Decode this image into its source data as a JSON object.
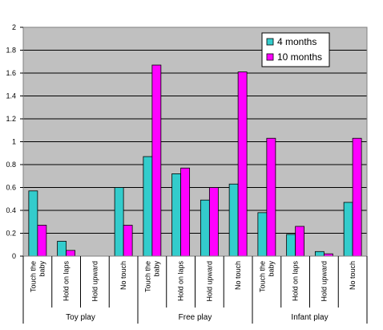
{
  "chart_data": {
    "type": "bar",
    "ylim": [
      0,
      2
    ],
    "y_ticks": [
      "0",
      "0.2",
      "0.4",
      "0.6",
      "0.8",
      "1",
      "1.2",
      "1.4",
      "1.6",
      "1.8",
      "2"
    ],
    "grid": true,
    "legend_position": "top-right",
    "categories": [
      [
        "Touch the",
        "baby"
      ],
      [
        "Hold on laps"
      ],
      [
        "Hold upward"
      ],
      [
        "No touch"
      ],
      [
        "Touch the",
        "baby"
      ],
      [
        "Hold on laps"
      ],
      [
        "Hold upward"
      ],
      [
        "No touch"
      ],
      [
        "Touch the",
        "baby"
      ],
      [
        "Hold on laps"
      ],
      [
        "Hold upward"
      ],
      [
        "No touch"
      ]
    ],
    "groups": [
      {
        "label": "Toy play",
        "span": 4
      },
      {
        "label": "Free play",
        "span": 4
      },
      {
        "label": "Infant play",
        "span": 4
      }
    ],
    "series": [
      {
        "name": "4 months",
        "color": "#33CCCC",
        "values": [
          0.57,
          0.13,
          0.0,
          0.6,
          0.87,
          0.72,
          0.49,
          0.63,
          0.38,
          0.19,
          0.04,
          0.47
        ]
      },
      {
        "name": "10 months",
        "color": "#FF00FF",
        "values": [
          0.27,
          0.05,
          0.0,
          0.27,
          1.67,
          0.77,
          0.6,
          1.61,
          1.03,
          0.26,
          0.02,
          1.03
        ]
      }
    ],
    "plot_background": "#C0C0C0"
  }
}
